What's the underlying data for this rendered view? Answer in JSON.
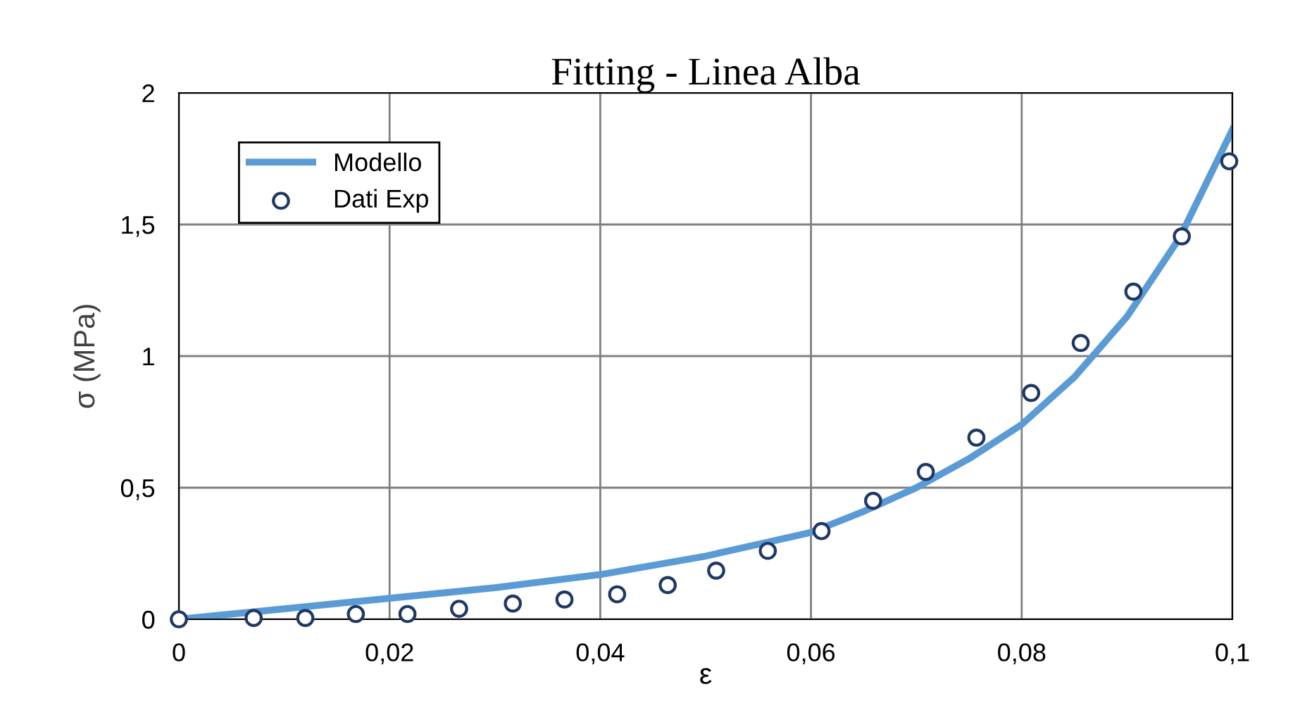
{
  "chart_data": {
    "type": "line",
    "title": "Fitting - Linea Alba",
    "xlabel": "ε",
    "ylabel": "σ (MPa)",
    "xlim": [
      0,
      0.1
    ],
    "ylim": [
      0,
      2
    ],
    "xticks": [
      0,
      {
        "value": 0.02,
        "label": "0,02"
      },
      {
        "value": 0.04,
        "label": "0,04"
      },
      {
        "value": 0.06,
        "label": "0,06"
      },
      {
        "value": 0.08,
        "label": "0,08"
      },
      {
        "value": 0.1,
        "label": "0,1"
      }
    ],
    "yticks": [
      0,
      {
        "value": 0.5,
        "label": "0,5"
      },
      1,
      {
        "value": 1.5,
        "label": "1,5"
      },
      2
    ],
    "grid": true,
    "legend": "top left",
    "series": [
      {
        "name": "Modello",
        "color": "#5b9bd5",
        "marker": "none",
        "line_style": "solid",
        "x": [
          0,
          0.01,
          0.02,
          0.03,
          0.04,
          0.05,
          0.06,
          0.065,
          0.07,
          0.075,
          0.08,
          0.085,
          0.09,
          0.095,
          0.1
        ],
        "values": [
          0,
          0.04,
          0.08,
          0.12,
          0.17,
          0.24,
          0.33,
          0.41,
          0.5,
          0.61,
          0.74,
          0.92,
          1.15,
          1.45,
          1.86
        ]
      },
      {
        "name": "Dati Exp",
        "type": "scatter",
        "color": "#1f3864",
        "marker": "circle",
        "x": [
          0,
          0.0071,
          0.012,
          0.0168,
          0.0217,
          0.0266,
          0.0317,
          0.0366,
          0.0416,
          0.0464,
          0.051,
          0.0559,
          0.061,
          0.0659,
          0.0709,
          0.0757,
          0.0809,
          0.0856,
          0.0906,
          0.0952,
          0.0997
        ],
        "values": [
          0,
          0.005,
          0.005,
          0.02,
          0.02,
          0.04,
          0.06,
          0.075,
          0.095,
          0.13,
          0.185,
          0.26,
          0.335,
          0.45,
          0.56,
          0.69,
          0.86,
          1.05,
          1.245,
          1.455,
          1.74
        ]
      }
    ]
  }
}
